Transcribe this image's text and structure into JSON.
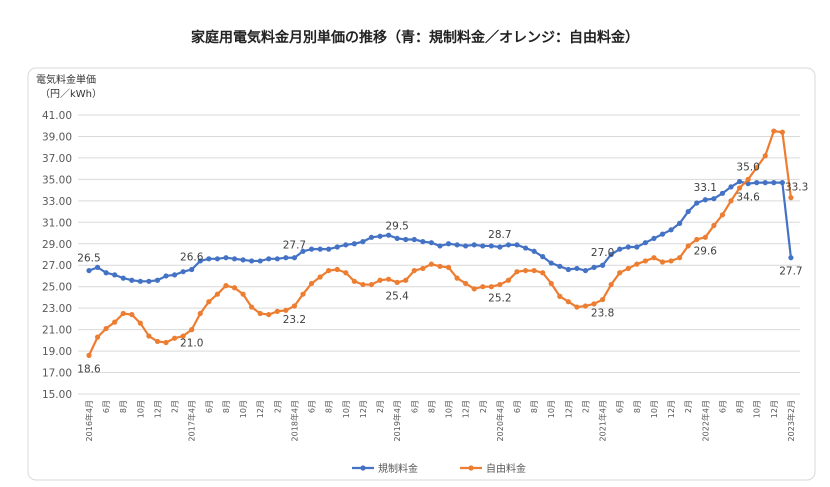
{
  "chart_data": {
    "type": "line",
    "title": "家庭用電気料金月別単価の推移（青：規制料金／オレンジ：自由料金）",
    "ylabel": [
      "電気料金単価",
      "（円／kWh）"
    ],
    "xlabel": "",
    "ylim": [
      15,
      41
    ],
    "ytick_step": 2,
    "ytick_format": "2 decimals",
    "grid": true,
    "legend_position": "bottom",
    "x_start": "2016年4月",
    "x_end": "2023年2月",
    "x_interval": "monthly",
    "xtick_labels": [
      "2016年4月",
      "6月",
      "8月",
      "10月",
      "12月",
      "2月",
      "2017年4月",
      "6月",
      "8月",
      "10月",
      "12月",
      "2月",
      "2018年4月",
      "6月",
      "8月",
      "10月",
      "12月",
      "2月",
      "2019年4月",
      "6月",
      "8月",
      "10月",
      "12月",
      "2月",
      "2020年4月",
      "6月",
      "8月",
      "10月",
      "12月",
      "2月",
      "2021年4月",
      "6月",
      "8月",
      "10月",
      "12月",
      "2月",
      "2022年4月",
      "6月",
      "8月",
      "10月",
      "12月",
      "2023年2月"
    ],
    "series": [
      {
        "name": "規制料金",
        "color": "#4472C4",
        "values": [
          26.5,
          26.8,
          26.3,
          26.1,
          25.8,
          25.6,
          25.5,
          25.5,
          25.6,
          26.0,
          26.1,
          26.4,
          26.6,
          27.4,
          27.6,
          27.6,
          27.7,
          27.6,
          27.5,
          27.4,
          27.4,
          27.6,
          27.6,
          27.7,
          27.7,
          28.3,
          28.5,
          28.5,
          28.5,
          28.7,
          28.9,
          29.0,
          29.2,
          29.6,
          29.7,
          29.8,
          29.5,
          29.4,
          29.4,
          29.2,
          29.1,
          28.8,
          29.0,
          28.9,
          28.8,
          28.9,
          28.8,
          28.8,
          28.7,
          28.9,
          28.9,
          28.6,
          28.3,
          27.8,
          27.2,
          26.9,
          26.6,
          26.7,
          26.5,
          26.8,
          27.0,
          28.0,
          28.5,
          28.7,
          28.7,
          29.1,
          29.5,
          29.9,
          30.3,
          30.9,
          32.0,
          32.8,
          33.1,
          33.2,
          33.7,
          34.3,
          34.8,
          34.6,
          34.7,
          34.7,
          34.7,
          34.7,
          27.7
        ],
        "data_labels": [
          {
            "index": 0,
            "text": "26.5",
            "pos": "above"
          },
          {
            "index": 12,
            "text": "26.6",
            "pos": "above"
          },
          {
            "index": 24,
            "text": "27.7",
            "pos": "above"
          },
          {
            "index": 36,
            "text": "29.5",
            "pos": "above"
          },
          {
            "index": 48,
            "text": "28.7",
            "pos": "above"
          },
          {
            "index": 60,
            "text": "27.0",
            "pos": "above"
          },
          {
            "index": 72,
            "text": "33.1",
            "pos": "above"
          },
          {
            "index": 77,
            "text": "34.6",
            "pos": "below"
          },
          {
            "index": 82,
            "text": "27.7",
            "pos": "below"
          }
        ]
      },
      {
        "name": "自由料金",
        "color": "#ED7D31",
        "values": [
          18.6,
          20.3,
          21.1,
          21.7,
          22.5,
          22.4,
          21.6,
          20.4,
          19.9,
          19.8,
          20.2,
          20.4,
          21.0,
          22.5,
          23.6,
          24.3,
          25.1,
          24.9,
          24.3,
          23.1,
          22.5,
          22.4,
          22.7,
          22.8,
          23.2,
          24.3,
          25.3,
          25.9,
          26.5,
          26.6,
          26.3,
          25.5,
          25.2,
          25.2,
          25.6,
          25.7,
          25.4,
          25.6,
          26.5,
          26.7,
          27.1,
          26.9,
          26.8,
          25.8,
          25.3,
          24.8,
          25.0,
          25.0,
          25.2,
          25.6,
          26.4,
          26.5,
          26.5,
          26.3,
          25.3,
          24.1,
          23.6,
          23.1,
          23.2,
          23.4,
          23.8,
          25.2,
          26.3,
          26.7,
          27.1,
          27.4,
          27.7,
          27.3,
          27.4,
          27.7,
          28.8,
          29.4,
          29.6,
          30.7,
          31.7,
          33.0,
          34.2,
          35.0,
          36.1,
          37.2,
          39.5,
          39.4,
          33.3
        ],
        "data_labels": [
          {
            "index": 0,
            "text": "18.6",
            "pos": "below"
          },
          {
            "index": 12,
            "text": "21.0",
            "pos": "below"
          },
          {
            "index": 24,
            "text": "23.2",
            "pos": "below"
          },
          {
            "index": 36,
            "text": "25.4",
            "pos": "below"
          },
          {
            "index": 48,
            "text": "25.2",
            "pos": "below"
          },
          {
            "index": 60,
            "text": "23.8",
            "pos": "below"
          },
          {
            "index": 72,
            "text": "29.6",
            "pos": "below"
          },
          {
            "index": 77,
            "text": "35.0",
            "pos": "above"
          },
          {
            "index": 82,
            "text": "33.3",
            "pos": "right"
          }
        ]
      }
    ]
  }
}
